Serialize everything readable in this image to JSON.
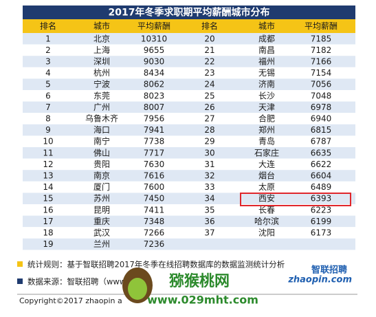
{
  "title": "2017年冬季求职期平均薪酬城市分布",
  "table": {
    "columns": [
      "排名",
      "城市",
      "平均薪酬",
      "排名",
      "城市",
      "平均薪酬"
    ],
    "left_rows": [
      [
        1,
        "北京",
        10310
      ],
      [
        2,
        "上海",
        9655
      ],
      [
        3,
        "深圳",
        9030
      ],
      [
        4,
        "杭州",
        8434
      ],
      [
        5,
        "宁波",
        8062
      ],
      [
        6,
        "东莞",
        8023
      ],
      [
        7,
        "广州",
        8007
      ],
      [
        8,
        "乌鲁木齐",
        7956
      ],
      [
        9,
        "海口",
        7941
      ],
      [
        10,
        "南宁",
        7738
      ],
      [
        11,
        "佛山",
        7717
      ],
      [
        12,
        "贵阳",
        7630
      ],
      [
        13,
        "南京",
        7616
      ],
      [
        14,
        "厦门",
        7600
      ],
      [
        15,
        "苏州",
        7450
      ],
      [
        16,
        "昆明",
        7411
      ],
      [
        17,
        "重庆",
        7348
      ],
      [
        18,
        "武汉",
        7266
      ],
      [
        19,
        "兰州",
        7236
      ]
    ],
    "right_rows": [
      [
        20,
        "成都",
        7185
      ],
      [
        21,
        "南昌",
        7182
      ],
      [
        22,
        "福州",
        7166
      ],
      [
        23,
        "无锡",
        7154
      ],
      [
        24,
        "济南",
        7056
      ],
      [
        25,
        "长沙",
        7048
      ],
      [
        26,
        "天津",
        6978
      ],
      [
        27,
        "合肥",
        6940
      ],
      [
        28,
        "郑州",
        6815
      ],
      [
        29,
        "青岛",
        6787
      ],
      [
        30,
        "石家庄",
        6635
      ],
      [
        31,
        "大连",
        6622
      ],
      [
        32,
        "烟台",
        6604
      ],
      [
        33,
        "太原",
        6489
      ],
      [
        34,
        "西安",
        6393
      ],
      [
        35,
        "长春",
        6223
      ],
      [
        36,
        "哈尔滨",
        6199
      ],
      [
        37,
        "沈阳",
        6173
      ]
    ]
  },
  "footer": {
    "rule": "统计规则：基于智联招聘2017年冬季在线招聘数据库的数据监测统计分析",
    "source": "数据来源：智联招聘（www",
    "copyright": "Copyright©2017 zhaopin a"
  },
  "logo": {
    "name": "智联招聘",
    "url": "zhaopin.com"
  },
  "watermark": {
    "name": "猕猴桃网",
    "url": "www.029mht.com"
  }
}
